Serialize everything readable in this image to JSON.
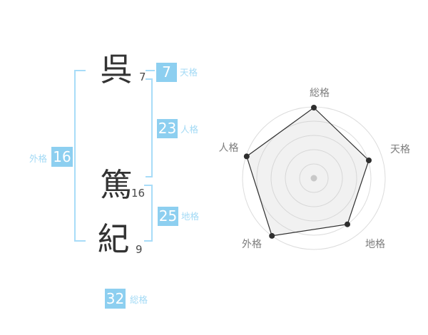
{
  "name": {
    "surname": [
      {
        "char": "呉",
        "strokes": "7"
      }
    ],
    "given": [
      {
        "char": "篤",
        "strokes": "16"
      },
      {
        "char": "紀",
        "strokes": "9"
      }
    ]
  },
  "scores": {
    "tenkaku": {
      "label": "天格",
      "value": "7"
    },
    "jinkaku": {
      "label": "人格",
      "value": "23"
    },
    "gaikaku": {
      "label": "外格",
      "value": "16"
    },
    "chikaku": {
      "label": "地格",
      "value": "25"
    },
    "soukaku": {
      "label": "総格",
      "value": "32"
    }
  },
  "chart_data": {
    "type": "radar",
    "categories": [
      "総格",
      "天格",
      "地格",
      "外格",
      "人格"
    ],
    "values": [
      99,
      81,
      80,
      100,
      99
    ],
    "max": 100,
    "rings": [
      20,
      40,
      60,
      80,
      100
    ],
    "grid": "circular",
    "legend_position": "none",
    "axis_lines": false
  },
  "colors": {
    "chip_bg": "#8dcff0",
    "chip_text": "#ffffff",
    "label_blue": "#a3daf5",
    "bracket_blue": "#a8dcf8",
    "kanji_text": "#333333",
    "strokes_text": "#4a4a4a",
    "radar_label": "#7d7d7d",
    "radar_ring": "#dcdcdc",
    "radar_polygon_stroke": "#2e2e2e",
    "radar_polygon_fill": "#c9c9c9",
    "radar_center_dot": "#c8c8c8"
  }
}
